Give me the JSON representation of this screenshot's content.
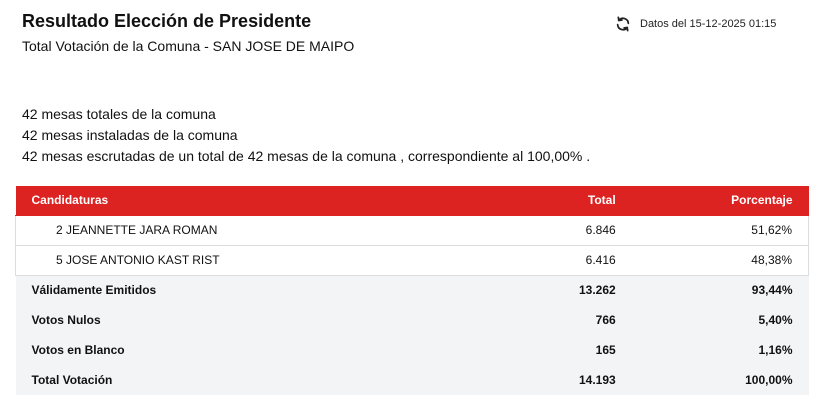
{
  "header": {
    "title": "Resultado Elección de Presidente",
    "subtitle": "Total Votación de la Comuna - SAN JOSE DE MAIPO"
  },
  "status": {
    "refresh_icon": "refresh-icon",
    "date_text": "Datos del 15-12-2025 01:15"
  },
  "info": {
    "total_tables": "42 mesas totales de la comuna",
    "installed_tables": "42 mesas instaladas de la comuna",
    "counted_tables": "42 mesas escrutadas de un total de 42 mesas de la comuna , correspondiente al 100,00% ."
  },
  "table": {
    "headers": [
      "Candidaturas",
      "Total",
      "Porcentaje"
    ],
    "candidates": [
      [
        "2 JEANNETTE JARA ROMAN",
        "6.846",
        "51,62%"
      ],
      [
        "5 JOSE ANTONIO KAST RIST",
        "6.416",
        "48,38%"
      ]
    ],
    "summary": [
      [
        "Válidamente Emitidos",
        "13.262",
        "93,44%"
      ],
      [
        "Votos Nulos",
        "766",
        "5,40%"
      ],
      [
        "Votos en Blanco",
        "165",
        "1,16%"
      ],
      [
        "Total Votación",
        "14.193",
        "100,00%"
      ]
    ]
  },
  "colors": {
    "header_red": "#dd2222",
    "summary_bg": "#f3f4f6"
  }
}
